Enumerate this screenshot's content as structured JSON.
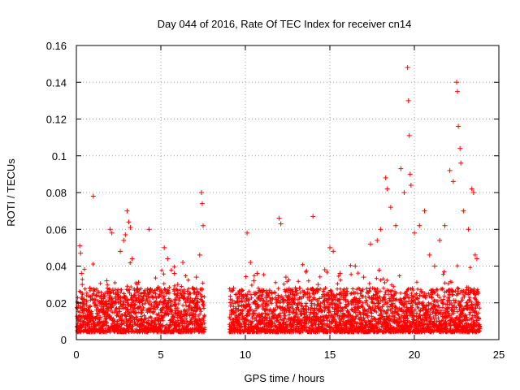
{
  "chart_data": {
    "type": "scatter",
    "title": "Day 044 of 2016, Rate Of TEC Index for receiver cn14",
    "xlabel": "GPS time / hours",
    "ylabel": "ROTI / TECUs",
    "xlim": [
      0,
      25
    ],
    "ylim": [
      0,
      0.16
    ],
    "x_ticks": [
      0,
      5,
      10,
      15,
      20,
      25
    ],
    "x_tick_labels": [
      "0",
      "5",
      "10",
      "15",
      "20",
      "25"
    ],
    "y_ticks": [
      0,
      0.02,
      0.04,
      0.06,
      0.08,
      0.1,
      0.12,
      0.14,
      0.16
    ],
    "y_tick_labels": [
      "0",
      "0.02",
      "0.04",
      "0.06",
      "0.08",
      "0.1",
      "0.12",
      "0.14",
      "0.16"
    ],
    "grid": true,
    "marker": "plus",
    "marker_color": "#ff0000",
    "series": [
      {
        "name": "ROTI",
        "points": [
          [
            0.1,
            0.012
          ],
          [
            0.2,
            0.051
          ],
          [
            0.25,
            0.047
          ],
          [
            0.3,
            0.036
          ],
          [
            0.35,
            0.03
          ],
          [
            0.45,
            0.022
          ],
          [
            0.6,
            0.016
          ],
          [
            0.8,
            0.028
          ],
          [
            1.0,
            0.078
          ],
          [
            1.2,
            0.024
          ],
          [
            1.5,
            0.018
          ],
          [
            1.8,
            0.032
          ],
          [
            2.0,
            0.06
          ],
          [
            2.1,
            0.058
          ],
          [
            2.3,
            0.02
          ],
          [
            2.6,
            0.048
          ],
          [
            2.8,
            0.054
          ],
          [
            2.9,
            0.057
          ],
          [
            3.0,
            0.07
          ],
          [
            3.1,
            0.064
          ],
          [
            3.2,
            0.061
          ],
          [
            3.3,
            0.044
          ],
          [
            3.6,
            0.03
          ],
          [
            3.9,
            0.022
          ],
          [
            4.2,
            0.026
          ],
          [
            4.3,
            0.06
          ],
          [
            4.6,
            0.018
          ],
          [
            5.0,
            0.024
          ],
          [
            5.2,
            0.05
          ],
          [
            5.4,
            0.044
          ],
          [
            5.8,
            0.036
          ],
          [
            6.0,
            0.03
          ],
          [
            6.3,
            0.042
          ],
          [
            6.6,
            0.022
          ],
          [
            6.9,
            0.028
          ],
          [
            7.1,
            0.034
          ],
          [
            7.3,
            0.046
          ],
          [
            7.4,
            0.08
          ],
          [
            7.45,
            0.074
          ],
          [
            7.5,
            0.062
          ],
          [
            9.3,
            0.028
          ],
          [
            9.6,
            0.018
          ],
          [
            9.9,
            0.024
          ],
          [
            10.1,
            0.058
          ],
          [
            10.3,
            0.042
          ],
          [
            10.5,
            0.032
          ],
          [
            10.7,
            0.036
          ],
          [
            11.2,
            0.016
          ],
          [
            11.6,
            0.022
          ],
          [
            12.0,
            0.066
          ],
          [
            12.1,
            0.063
          ],
          [
            12.4,
            0.034
          ],
          [
            12.8,
            0.022
          ],
          [
            13.2,
            0.028
          ],
          [
            13.6,
            0.018
          ],
          [
            14.0,
            0.067
          ],
          [
            14.3,
            0.03
          ],
          [
            14.7,
            0.038
          ],
          [
            15.0,
            0.05
          ],
          [
            15.2,
            0.048
          ],
          [
            15.6,
            0.036
          ],
          [
            16.0,
            0.026
          ],
          [
            16.5,
            0.04
          ],
          [
            17.0,
            0.034
          ],
          [
            17.4,
            0.052
          ],
          [
            17.8,
            0.054
          ],
          [
            18.0,
            0.06
          ],
          [
            18.3,
            0.088
          ],
          [
            18.4,
            0.082
          ],
          [
            18.6,
            0.072
          ],
          [
            18.9,
            0.062
          ],
          [
            19.2,
            0.093
          ],
          [
            19.4,
            0.08
          ],
          [
            19.6,
            0.148
          ],
          [
            19.65,
            0.13
          ],
          [
            19.7,
            0.111
          ],
          [
            19.75,
            0.09
          ],
          [
            19.8,
            0.084
          ],
          [
            20.0,
            0.058
          ],
          [
            20.3,
            0.062
          ],
          [
            20.6,
            0.07
          ],
          [
            20.9,
            0.046
          ],
          [
            21.2,
            0.04
          ],
          [
            21.5,
            0.054
          ],
          [
            21.8,
            0.062
          ],
          [
            22.1,
            0.092
          ],
          [
            22.3,
            0.086
          ],
          [
            22.5,
            0.14
          ],
          [
            22.55,
            0.135
          ],
          [
            22.6,
            0.116
          ],
          [
            22.7,
            0.104
          ],
          [
            22.75,
            0.096
          ],
          [
            22.9,
            0.07
          ],
          [
            23.2,
            0.06
          ],
          [
            23.4,
            0.082
          ],
          [
            23.5,
            0.08
          ],
          [
            23.6,
            0.046
          ],
          [
            23.7,
            0.044
          ]
        ]
      }
    ]
  }
}
